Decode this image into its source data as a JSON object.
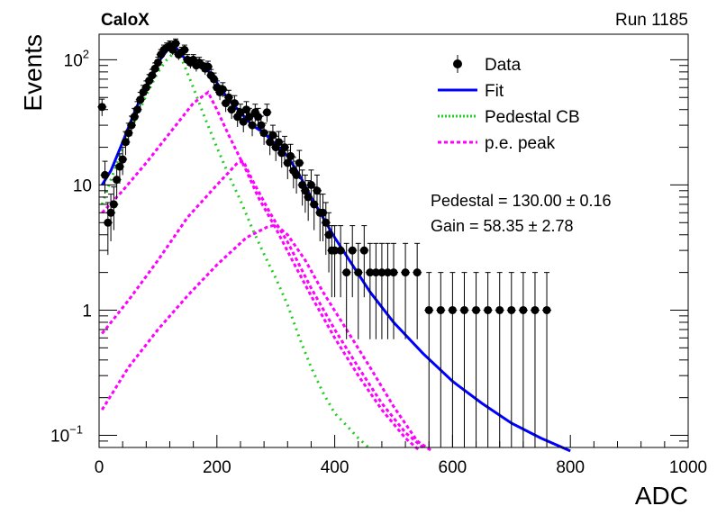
{
  "header": {
    "experiment": "CaloX",
    "run_label": "Run 1185"
  },
  "stats": {
    "pedestal_text": "Pedestal = 130.00 ± 0.16",
    "gain_text": "Gain = 58.35 ± 2.78"
  },
  "chart_data": {
    "type": "scatter",
    "xlabel": "ADC",
    "ylabel": "Events",
    "xlim": [
      0,
      1000
    ],
    "ylim": [
      0.08,
      160
    ],
    "yscale": "log",
    "x_ticks": [
      0,
      200,
      400,
      600,
      800,
      1000
    ],
    "y_ticks": [
      {
        "value": 100,
        "label": "10",
        "exp": "2"
      },
      {
        "value": 10,
        "label": "10",
        "exp": ""
      },
      {
        "value": 1,
        "label": "1",
        "exp": ""
      },
      {
        "value": 0.1,
        "label": "10",
        "exp": "−1"
      }
    ],
    "legend": {
      "placement": "top-right",
      "entries": [
        {
          "label": "Data",
          "kind": "marker",
          "color": "#000000"
        },
        {
          "label": "Fit",
          "kind": "line",
          "color": "#0000ff"
        },
        {
          "label": "Pedestal CB",
          "kind": "dotted",
          "color": "#22cc22"
        },
        {
          "label": "p.e. peak",
          "kind": "dashed",
          "color": "#ff00ff"
        }
      ]
    },
    "colors": {
      "data": "#000000",
      "fit": "#0000ff",
      "pedestal": "#22cc22",
      "pe_peak": "#ff00ff"
    },
    "pedestal": {
      "mean": 130.0,
      "gain": 58.35
    },
    "series": [
      {
        "name": "Data",
        "kind": "data",
        "points": [
          [
            5,
            42
          ],
          [
            10,
            12
          ],
          [
            15,
            5
          ],
          [
            20,
            6
          ],
          [
            25,
            7
          ],
          [
            30,
            11
          ],
          [
            35,
            14
          ],
          [
            40,
            16
          ],
          [
            45,
            22
          ],
          [
            50,
            26
          ],
          [
            55,
            30
          ],
          [
            60,
            35
          ],
          [
            65,
            40
          ],
          [
            70,
            48
          ],
          [
            75,
            55
          ],
          [
            80,
            60
          ],
          [
            85,
            68
          ],
          [
            90,
            75
          ],
          [
            95,
            85
          ],
          [
            100,
            95
          ],
          [
            105,
            110
          ],
          [
            110,
            120
          ],
          [
            115,
            125
          ],
          [
            120,
            130
          ],
          [
            125,
            120
          ],
          [
            130,
            135
          ],
          [
            135,
            110
          ],
          [
            140,
            115
          ],
          [
            145,
            120
          ],
          [
            150,
            100
          ],
          [
            155,
            95
          ],
          [
            160,
            100
          ],
          [
            165,
            90
          ],
          [
            170,
            95
          ],
          [
            175,
            90
          ],
          [
            180,
            85
          ],
          [
            185,
            88
          ],
          [
            190,
            75
          ],
          [
            195,
            70
          ],
          [
            200,
            60
          ],
          [
            205,
            55
          ],
          [
            210,
            58
          ],
          [
            215,
            45
          ],
          [
            220,
            50
          ],
          [
            225,
            40
          ],
          [
            230,
            45
          ],
          [
            235,
            35
          ],
          [
            240,
            38
          ],
          [
            245,
            32
          ],
          [
            250,
            40
          ],
          [
            255,
            35
          ],
          [
            260,
            30
          ],
          [
            265,
            38
          ],
          [
            270,
            35
          ],
          [
            275,
            30
          ],
          [
            280,
            26
          ],
          [
            285,
            38
          ],
          [
            290,
            22
          ],
          [
            295,
            25
          ],
          [
            300,
            20
          ],
          [
            305,
            22
          ],
          [
            310,
            18
          ],
          [
            315,
            20
          ],
          [
            320,
            15
          ],
          [
            325,
            17
          ],
          [
            330,
            13
          ],
          [
            335,
            12
          ],
          [
            340,
            15
          ],
          [
            345,
            10
          ],
          [
            350,
            9
          ],
          [
            355,
            8
          ],
          [
            360,
            10
          ],
          [
            365,
            7
          ],
          [
            370,
            9
          ],
          [
            375,
            6
          ],
          [
            380,
            6
          ],
          [
            385,
            5
          ],
          [
            390,
            4
          ],
          [
            395,
            3
          ],
          [
            400,
            3
          ],
          [
            410,
            3
          ],
          [
            420,
            2
          ],
          [
            430,
            3
          ],
          [
            440,
            2
          ],
          [
            450,
            3
          ],
          [
            460,
            2
          ],
          [
            470,
            2
          ],
          [
            480,
            2
          ],
          [
            490,
            2
          ],
          [
            500,
            2
          ],
          [
            520,
            2
          ],
          [
            540,
            2
          ],
          [
            560,
            1
          ],
          [
            580,
            1
          ],
          [
            600,
            1
          ],
          [
            620,
            1
          ],
          [
            640,
            1
          ],
          [
            660,
            1
          ],
          [
            680,
            1
          ],
          [
            700,
            1
          ],
          [
            720,
            1
          ],
          [
            740,
            1
          ],
          [
            760,
            1
          ]
        ]
      },
      {
        "name": "Fit",
        "kind": "fit",
        "points": [
          [
            5,
            10
          ],
          [
            20,
            13
          ],
          [
            40,
            22
          ],
          [
            60,
            38
          ],
          [
            80,
            62
          ],
          [
            100,
            95
          ],
          [
            115,
            118
          ],
          [
            125,
            135
          ],
          [
            135,
            118
          ],
          [
            150,
            96
          ],
          [
            165,
            90
          ],
          [
            180,
            85
          ],
          [
            190,
            78
          ],
          [
            205,
            60
          ],
          [
            220,
            48
          ],
          [
            240,
            38
          ],
          [
            260,
            30
          ],
          [
            280,
            26
          ],
          [
            300,
            21
          ],
          [
            320,
            17
          ],
          [
            340,
            12
          ],
          [
            360,
            8
          ],
          [
            380,
            5.5
          ],
          [
            400,
            3.8
          ],
          [
            430,
            2.3
          ],
          [
            460,
            1.4
          ],
          [
            500,
            0.8
          ],
          [
            550,
            0.45
          ],
          [
            600,
            0.27
          ],
          [
            650,
            0.18
          ],
          [
            700,
            0.125
          ],
          [
            750,
            0.095
          ],
          [
            800,
            0.075
          ]
        ]
      },
      {
        "name": "Pedestal CB",
        "kind": "pedestal",
        "points": [
          [
            5,
            7
          ],
          [
            20,
            11
          ],
          [
            40,
            20
          ],
          [
            60,
            32
          ],
          [
            80,
            52
          ],
          [
            100,
            80
          ],
          [
            115,
            100
          ],
          [
            128,
            115
          ],
          [
            140,
            102
          ],
          [
            160,
            60
          ],
          [
            180,
            34
          ],
          [
            200,
            20
          ],
          [
            220,
            12
          ],
          [
            240,
            7.5
          ],
          [
            260,
            4.5
          ],
          [
            280,
            2.8
          ],
          [
            300,
            1.8
          ],
          [
            320,
            1.1
          ],
          [
            340,
            0.6
          ],
          [
            360,
            0.35
          ],
          [
            380,
            0.22
          ],
          [
            400,
            0.15
          ],
          [
            420,
            0.12
          ],
          [
            440,
            0.095
          ],
          [
            460,
            0.078
          ]
        ]
      },
      {
        "name": "p.e. peak",
        "kind": "pe",
        "points": [
          [
            5,
            6
          ],
          [
            40,
            9
          ],
          [
            80,
            15
          ],
          [
            120,
            26
          ],
          [
            160,
            45
          ],
          [
            185,
            55
          ],
          [
            200,
            40
          ],
          [
            220,
            25
          ],
          [
            250,
            13
          ],
          [
            270,
            8
          ],
          [
            300,
            4.5
          ],
          [
            330,
            2.4
          ],
          [
            360,
            1.3
          ],
          [
            400,
            0.6
          ],
          [
            440,
            0.3
          ],
          [
            480,
            0.16
          ],
          [
            520,
            0.095
          ],
          [
            545,
            0.075
          ]
        ]
      },
      {
        "name": "p.e. peak",
        "kind": "pe",
        "points": [
          [
            5,
            0.65
          ],
          [
            50,
            1.2
          ],
          [
            100,
            2.5
          ],
          [
            150,
            5.5
          ],
          [
            200,
            10
          ],
          [
            235,
            15
          ],
          [
            245,
            15.5
          ],
          [
            260,
            11
          ],
          [
            290,
            6
          ],
          [
            320,
            3.5
          ],
          [
            360,
            1.5
          ],
          [
            400,
            0.7
          ],
          [
            440,
            0.35
          ],
          [
            480,
            0.18
          ],
          [
            520,
            0.105
          ],
          [
            550,
            0.08
          ]
        ]
      },
      {
        "name": "p.e. peak",
        "kind": "pe",
        "points": [
          [
            5,
            0.16
          ],
          [
            50,
            0.35
          ],
          [
            100,
            0.7
          ],
          [
            150,
            1.3
          ],
          [
            200,
            2.3
          ],
          [
            250,
            3.8
          ],
          [
            285,
            4.6
          ],
          [
            300,
            4.8
          ],
          [
            320,
            4
          ],
          [
            350,
            2.5
          ],
          [
            380,
            1.4
          ],
          [
            420,
            0.7
          ],
          [
            460,
            0.35
          ],
          [
            500,
            0.17
          ],
          [
            540,
            0.09
          ],
          [
            565,
            0.075
          ]
        ]
      }
    ]
  }
}
